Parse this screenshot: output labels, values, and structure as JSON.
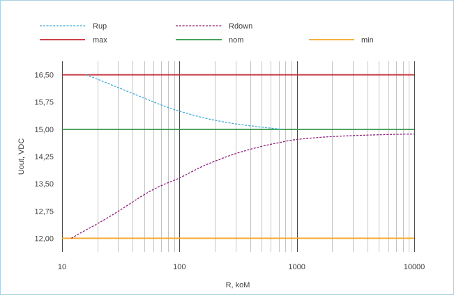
{
  "chart_data": {
    "type": "line",
    "xscale": "log",
    "xlim": [
      10,
      10000
    ],
    "ylim": [
      11.625,
      16.875
    ],
    "xticks": [
      10,
      100,
      1000,
      10000
    ],
    "xtick_labels": [
      "10",
      "100",
      "1000",
      "10000"
    ],
    "yticks": [
      12,
      12.75,
      13.5,
      14.25,
      15,
      15.75,
      16.5
    ],
    "ytick_labels": [
      "12,00",
      "12,75",
      "13,50",
      "14,25",
      "15,00",
      "15,75",
      "16,50"
    ],
    "xlabel": "R, koM",
    "ylabel": "Uout, VDC",
    "grid": "vertical",
    "legend": "top",
    "series": [
      {
        "name": "Rup",
        "color": "#3fa9d8",
        "style": "dashed",
        "x": [
          16,
          20,
          30,
          50,
          70,
          100,
          150,
          200,
          300,
          500,
          750
        ],
        "y": [
          16.5,
          16.38,
          16.15,
          15.86,
          15.67,
          15.5,
          15.34,
          15.25,
          15.15,
          15.06,
          15.0
        ]
      },
      {
        "name": "Rdown",
        "color": "#8e1f7c",
        "style": "dashed",
        "x": [
          12,
          15,
          20,
          30,
          50,
          70,
          100,
          150,
          200,
          300,
          500,
          700,
          1000,
          2000,
          5000,
          10000
        ],
        "y": [
          12.0,
          12.18,
          12.4,
          12.74,
          13.2,
          13.45,
          13.66,
          13.95,
          14.12,
          14.33,
          14.53,
          14.63,
          14.72,
          14.8,
          14.85,
          14.87
        ]
      },
      {
        "name": "max",
        "color": "#c4262e",
        "style": "solid",
        "x": [
          10,
          10000
        ],
        "y": [
          16.5,
          16.5
        ]
      },
      {
        "name": "nom",
        "color": "#2e9444",
        "style": "solid",
        "x": [
          10,
          10000
        ],
        "y": [
          15.0,
          15.0
        ]
      },
      {
        "name": "min",
        "color": "#f5a623",
        "style": "solid",
        "x": [
          10,
          10000
        ],
        "y": [
          12.0,
          12.0
        ]
      }
    ]
  }
}
